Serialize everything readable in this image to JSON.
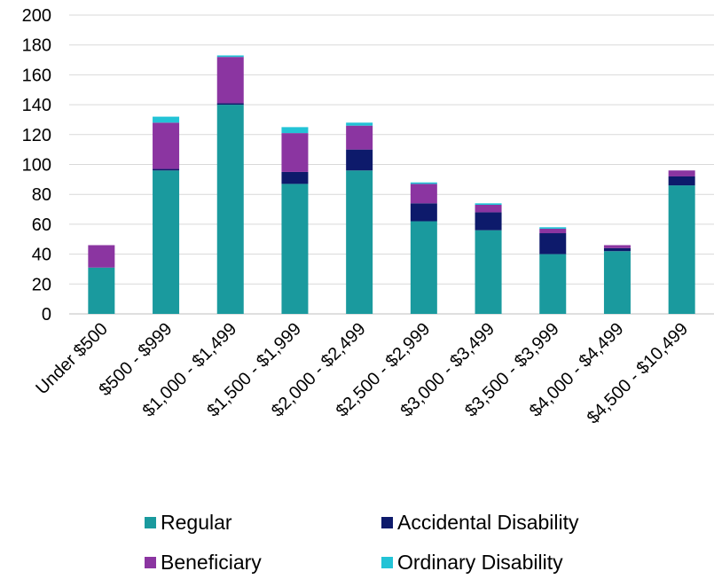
{
  "chart_data": {
    "type": "bar",
    "stacked": true,
    "categories": [
      "Under $500",
      "$500 - $999",
      "$1,000 - $1,499",
      "$1,500 - $1,999",
      "$2,000 - $2,499",
      "$2,500 - $2,999",
      "$3,000 - $3,499",
      "$3,500 - $3,999",
      "$4,000 - $4,499",
      "$4,500 - $10,499"
    ],
    "series": [
      {
        "name": "Regular",
        "color": "#1a9a9e",
        "values": [
          31,
          96,
          140,
          87,
          96,
          62,
          56,
          40,
          42,
          86
        ]
      },
      {
        "name": "Accidental Disability",
        "color": "#0d1a6b",
        "values": [
          0,
          1,
          1,
          8,
          14,
          12,
          12,
          14,
          2,
          6
        ]
      },
      {
        "name": "Beneficiary",
        "color": "#8b35a1",
        "values": [
          15,
          31,
          31,
          26,
          16,
          13,
          5,
          3,
          2,
          4
        ]
      },
      {
        "name": "Ordinary Disability",
        "color": "#22c3d6",
        "values": [
          0,
          4,
          1,
          4,
          2,
          1,
          1,
          1,
          0,
          0
        ]
      }
    ],
    "ylim": [
      0,
      200
    ],
    "yticks": [
      0,
      20,
      40,
      60,
      80,
      100,
      120,
      140,
      160,
      180,
      200
    ],
    "grid": true,
    "legend": "bottom",
    "title": "",
    "xlabel": "",
    "ylabel": ""
  }
}
